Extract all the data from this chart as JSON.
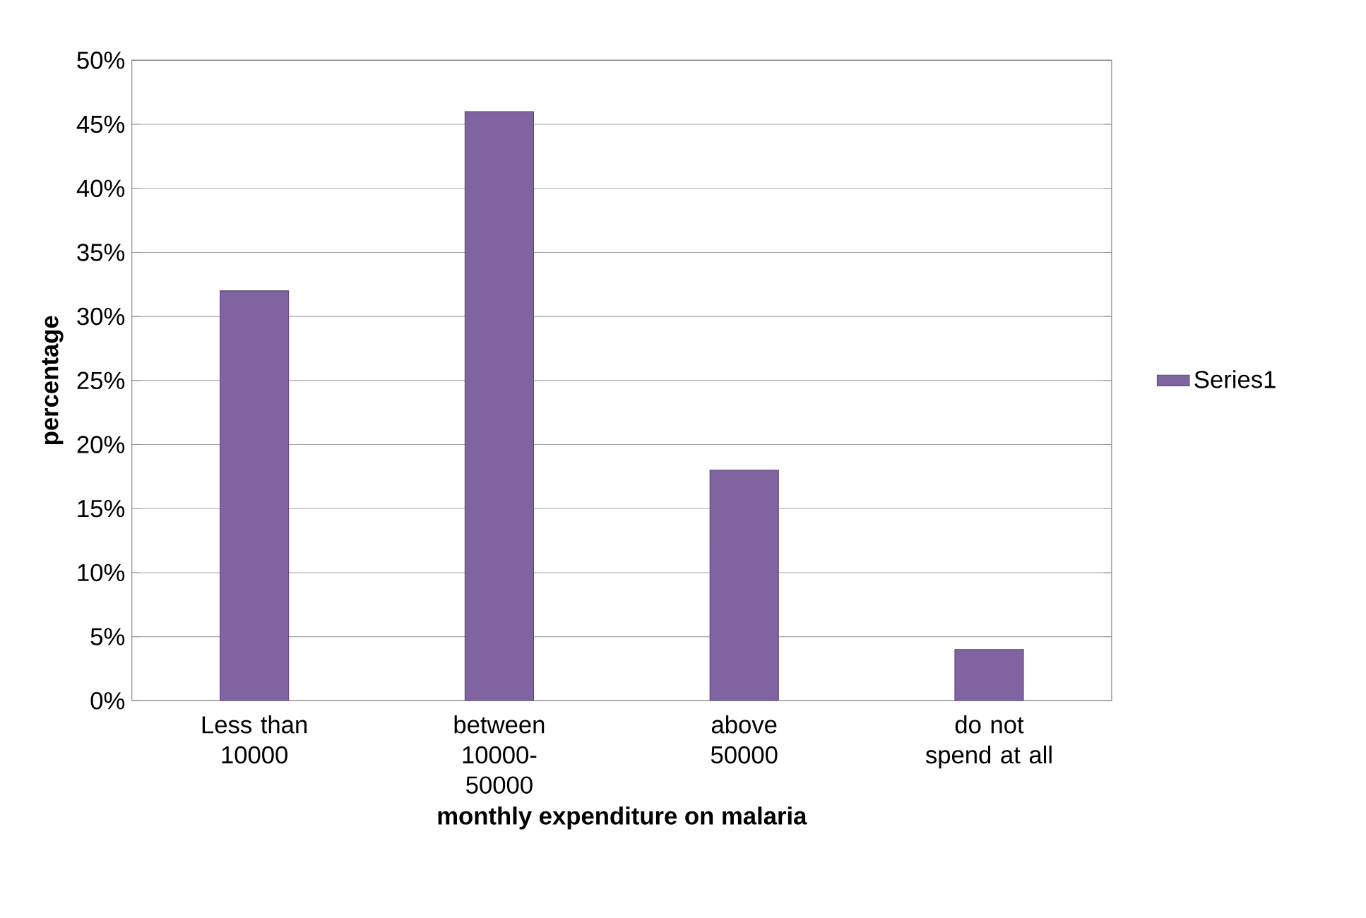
{
  "chart_data": {
    "type": "bar",
    "xlabel": "monthly expenditure on malaria",
    "ylabel": "percentage",
    "categories": [
      "Less than 10000",
      "between 10000-50000",
      "above 50000",
      "do not spend at all"
    ],
    "series": [
      {
        "name": "Series1",
        "color": "#8064a2",
        "values": [
          32,
          46,
          18,
          4
        ]
      }
    ],
    "ylim": [
      0,
      50
    ],
    "yticks": [
      {
        "value": 0,
        "label": "0%"
      },
      {
        "value": 5,
        "label": "5%"
      },
      {
        "value": 10,
        "label": "10%"
      },
      {
        "value": 15,
        "label": "15%"
      },
      {
        "value": 20,
        "label": "20%"
      },
      {
        "value": 25,
        "label": "25%"
      },
      {
        "value": 30,
        "label": "30%"
      },
      {
        "value": 35,
        "label": "35%"
      },
      {
        "value": 40,
        "label": "40%"
      },
      {
        "value": 45,
        "label": "45%"
      },
      {
        "value": 50,
        "label": "50%"
      }
    ],
    "grid": "y",
    "legend": "right"
  }
}
